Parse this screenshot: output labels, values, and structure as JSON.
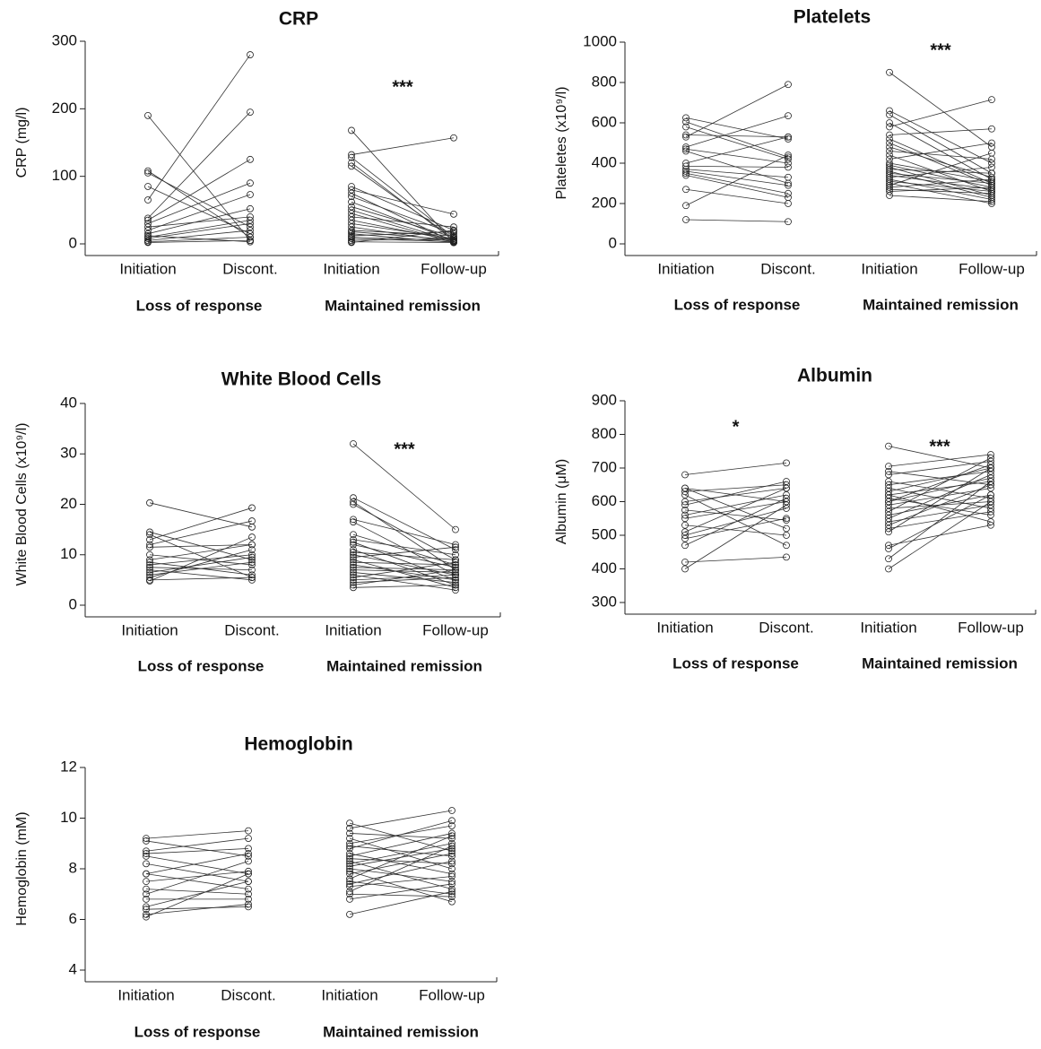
{
  "chart_data": [
    {
      "type": "paired",
      "title": "CRP",
      "y_label": "CRP (mg/l)",
      "categories": [
        "Initiation",
        "Discont.",
        "Initiation",
        "Follow-up"
      ],
      "ylim": [
        0,
        300
      ],
      "yticks": [
        0,
        100,
        200,
        300
      ],
      "groups": [
        {
          "name": "Loss of response",
          "values": [
            [
              190,
              5
            ],
            [
              108,
              10
            ],
            [
              105,
              25
            ],
            [
              85,
              15
            ],
            [
              65,
              280
            ],
            [
              38,
              195
            ],
            [
              35,
              125
            ],
            [
              30,
              90
            ],
            [
              20,
              73
            ],
            [
              15,
              52
            ],
            [
              10,
              35
            ],
            [
              8,
              30
            ],
            [
              5,
              20
            ],
            [
              3,
              10
            ],
            [
              2,
              5
            ],
            [
              12,
              3
            ],
            [
              25,
              40
            ]
          ]
        },
        {
          "name": "Maintained remission",
          "significance": "***",
          "values": [
            [
              168,
              2
            ],
            [
              132,
              157
            ],
            [
              128,
              10
            ],
            [
              120,
              5
            ],
            [
              115,
              8
            ],
            [
              85,
              20
            ],
            [
              80,
              44
            ],
            [
              75,
              3
            ],
            [
              70,
              15
            ],
            [
              62,
              5
            ],
            [
              55,
              10
            ],
            [
              45,
              2
            ],
            [
              40,
              25
            ],
            [
              35,
              5
            ],
            [
              30,
              8
            ],
            [
              25,
              3
            ],
            [
              20,
              12
            ],
            [
              15,
              2
            ],
            [
              12,
              18
            ],
            [
              10,
              5
            ],
            [
              8,
              3
            ],
            [
              5,
              8
            ],
            [
              3,
              2
            ],
            [
              2,
              20
            ],
            [
              18,
              6
            ],
            [
              50,
              4
            ]
          ]
        }
      ]
    },
    {
      "type": "paired",
      "title": "Platelets",
      "y_label": "Plateletes (x10⁹/l)",
      "categories": [
        "Initiation",
        "Discont.",
        "Initiation",
        "Follow-up"
      ],
      "ylim": [
        0,
        1000
      ],
      "yticks": [
        0,
        200,
        400,
        600,
        800,
        1000
      ],
      "groups": [
        {
          "name": "Loss of response",
          "values": [
            [
              625,
              520
            ],
            [
              605,
              430
            ],
            [
              580,
              420
            ],
            [
              540,
              530
            ],
            [
              530,
              790
            ],
            [
              480,
              635
            ],
            [
              470,
              400
            ],
            [
              460,
              300
            ],
            [
              400,
              530
            ],
            [
              385,
              380
            ],
            [
              370,
              330
            ],
            [
              360,
              290
            ],
            [
              350,
              250
            ],
            [
              340,
              230
            ],
            [
              270,
              200
            ],
            [
              190,
              440
            ],
            [
              120,
              110
            ]
          ]
        },
        {
          "name": "Maintained remission",
          "significance": "***",
          "values": [
            [
              850,
              480
            ],
            [
              660,
              400
            ],
            [
              640,
              350
            ],
            [
              600,
              320
            ],
            [
              580,
              715
            ],
            [
              540,
              570
            ],
            [
              520,
              300
            ],
            [
              500,
              290
            ],
            [
              480,
              330
            ],
            [
              460,
              420
            ],
            [
              440,
              260
            ],
            [
              420,
              500
            ],
            [
              400,
              310
            ],
            [
              390,
              280
            ],
            [
              380,
              240
            ],
            [
              370,
              350
            ],
            [
              360,
              230
            ],
            [
              350,
              300
            ],
            [
              340,
              270
            ],
            [
              330,
              380
            ],
            [
              320,
              220
            ],
            [
              310,
              260
            ],
            [
              300,
              200
            ],
            [
              290,
              450
            ],
            [
              280,
              320
            ],
            [
              270,
              250
            ],
            [
              260,
              280
            ],
            [
              240,
              210
            ]
          ]
        }
      ]
    },
    {
      "type": "paired",
      "title": "White Blood Cells",
      "y_label": "White Blood Cells (x10⁹/l)",
      "categories": [
        "Initiation",
        "Discont.",
        "Initiation",
        "Follow-up"
      ],
      "ylim": [
        0,
        40
      ],
      "yticks": [
        0,
        10,
        20,
        30,
        40
      ],
      "groups": [
        {
          "name": "Loss of response",
          "values": [
            [
              20.3,
              15.5
            ],
            [
              14.5,
              9
            ],
            [
              14,
              5.5
            ],
            [
              13,
              19.3
            ],
            [
              12,
              16.7
            ],
            [
              11.5,
              12
            ],
            [
              10,
              8
            ],
            [
              9,
              12
            ],
            [
              8.5,
              6
            ],
            [
              8,
              10
            ],
            [
              7.5,
              7
            ],
            [
              7,
              5
            ],
            [
              6.5,
              9.5
            ],
            [
              6,
              8.5
            ],
            [
              5.5,
              11
            ],
            [
              5,
              5.5
            ],
            [
              4.8,
              13.5
            ]
          ]
        },
        {
          "name": "Maintained remission",
          "significance": "***",
          "values": [
            [
              32,
              15
            ],
            [
              21.3,
              11
            ],
            [
              20.5,
              7
            ],
            [
              20,
              9
            ],
            [
              17,
              12
            ],
            [
              16.5,
              6
            ],
            [
              14,
              8
            ],
            [
              13,
              10
            ],
            [
              12.5,
              5
            ],
            [
              12,
              7.5
            ],
            [
              11,
              4
            ],
            [
              10.5,
              9
            ],
            [
              10,
              6
            ],
            [
              9.5,
              11.5
            ],
            [
              9,
              3.5
            ],
            [
              8.5,
              8
            ],
            [
              8,
              5
            ],
            [
              7.5,
              7
            ],
            [
              7,
              6.5
            ],
            [
              6.5,
              4.5
            ],
            [
              6,
              3
            ],
            [
              5.5,
              8.5
            ],
            [
              5,
              6
            ],
            [
              4.5,
              5.5
            ],
            [
              4,
              7
            ],
            [
              3.5,
              4
            ]
          ]
        }
      ]
    },
    {
      "type": "paired",
      "title": "Albumin",
      "y_label": "Albumin (μM)",
      "categories": [
        "Initiation",
        "Discont.",
        "Initiation",
        "Follow-up"
      ],
      "ylim": [
        300,
        900
      ],
      "yticks": [
        300,
        400,
        500,
        600,
        700,
        800,
        900
      ],
      "groups": [
        {
          "name": "Loss of response",
          "significance": "*",
          "values": [
            [
              680,
              715
            ],
            [
              640,
              600
            ],
            [
              630,
              650
            ],
            [
              620,
              470
            ],
            [
              600,
              640
            ],
            [
              590,
              660
            ],
            [
              575,
              545
            ],
            [
              560,
              620
            ],
            [
              550,
              600
            ],
            [
              530,
              500
            ],
            [
              510,
              640
            ],
            [
              500,
              580
            ],
            [
              490,
              550
            ],
            [
              470,
              610
            ],
            [
              420,
              435
            ],
            [
              400,
              590
            ],
            [
              640,
              520
            ]
          ]
        },
        {
          "name": "Maintained remission",
          "significance": "***",
          "values": [
            [
              765,
              700
            ],
            [
              705,
              740
            ],
            [
              690,
              650
            ],
            [
              680,
              720
            ],
            [
              660,
              610
            ],
            [
              650,
              690
            ],
            [
              640,
              580
            ],
            [
              630,
              700
            ],
            [
              620,
              660
            ],
            [
              610,
              560
            ],
            [
              600,
              710
            ],
            [
              590,
              640
            ],
            [
              580,
              600
            ],
            [
              570,
              730
            ],
            [
              560,
              620
            ],
            [
              550,
              680
            ],
            [
              540,
              590
            ],
            [
              530,
              650
            ],
            [
              520,
              570
            ],
            [
              510,
              700
            ],
            [
              470,
              530
            ],
            [
              460,
              620
            ],
            [
              430,
              660
            ],
            [
              400,
              600
            ],
            [
              620,
              540
            ],
            [
              600,
              670
            ]
          ]
        }
      ]
    },
    {
      "type": "paired",
      "title": "Hemoglobin",
      "y_label": "Hemoglobin  (mM)",
      "categories": [
        "Initiation",
        "Discont.",
        "Initiation",
        "Follow-up"
      ],
      "ylim": [
        4,
        12
      ],
      "yticks": [
        4,
        6,
        8,
        10,
        12
      ],
      "groups": [
        {
          "name": "Loss of response",
          "values": [
            [
              9.2,
              9.5
            ],
            [
              9.1,
              8.5
            ],
            [
              8.7,
              9.2
            ],
            [
              8.6,
              8.8
            ],
            [
              8.5,
              7.8
            ],
            [
              8.2,
              7.5
            ],
            [
              7.8,
              8.6
            ],
            [
              7.8,
              7.2
            ],
            [
              7.5,
              7.9
            ],
            [
              7.2,
              7.0
            ],
            [
              7.0,
              8.3
            ],
            [
              6.8,
              6.8
            ],
            [
              6.5,
              7.5
            ],
            [
              6.4,
              6.5
            ],
            [
              6.2,
              6.6
            ],
            [
              6.1,
              7.8
            ]
          ]
        },
        {
          "name": "Maintained remission",
          "values": [
            [
              9.8,
              8.7
            ],
            [
              9.6,
              10.3
            ],
            [
              9.4,
              9.2
            ],
            [
              9.2,
              8.0
            ],
            [
              9.0,
              9.7
            ],
            [
              8.9,
              8.5
            ],
            [
              8.8,
              9.9
            ],
            [
              8.6,
              7.8
            ],
            [
              8.5,
              9.4
            ],
            [
              8.4,
              8.2
            ],
            [
              8.3,
              7.2
            ],
            [
              8.2,
              9.0
            ],
            [
              8.1,
              8.8
            ],
            [
              8.0,
              7.5
            ],
            [
              7.9,
              6.7
            ],
            [
              7.8,
              8.6
            ],
            [
              7.6,
              9.3
            ],
            [
              7.5,
              7.0
            ],
            [
              7.4,
              8.3
            ],
            [
              7.3,
              7.7
            ],
            [
              7.1,
              8.9
            ],
            [
              7.0,
              6.9
            ],
            [
              6.8,
              7.4
            ],
            [
              6.2,
              7.1
            ]
          ]
        }
      ]
    }
  ]
}
